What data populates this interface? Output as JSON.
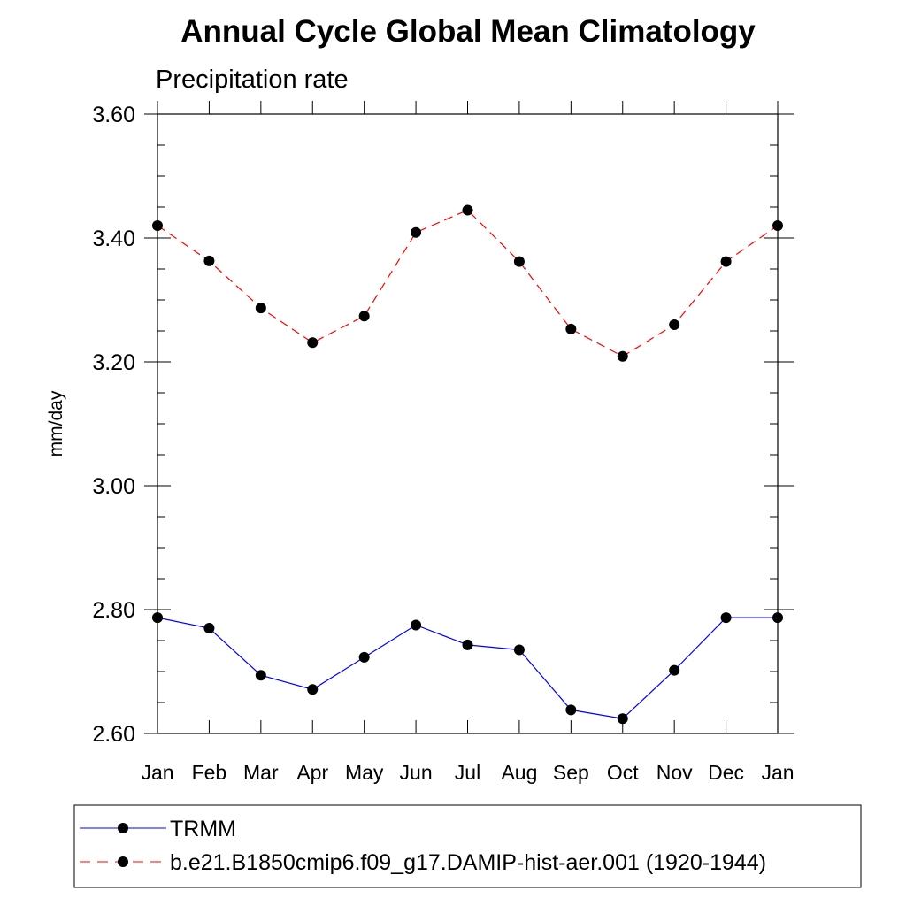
{
  "chart_data": {
    "type": "line",
    "title": "Annual Cycle Global Mean Climatology",
    "subtitle": "Precipitation rate",
    "xlabel": "",
    "ylabel": "mm/day",
    "categories": [
      "Jan",
      "Feb",
      "Mar",
      "Apr",
      "May",
      "Jun",
      "Jul",
      "Aug",
      "Sep",
      "Oct",
      "Nov",
      "Dec",
      "Jan"
    ],
    "ylim": [
      2.6,
      3.6
    ],
    "yticks": [
      "2.60",
      "2.80",
      "3.00",
      "3.20",
      "3.40",
      "3.60"
    ],
    "grid": false,
    "legend_position": "bottom",
    "series": [
      {
        "name": "TRMM",
        "color": "#0000ff",
        "line_style": "solid",
        "marker": "filled-circle",
        "values": [
          2.787,
          2.77,
          2.694,
          2.671,
          2.723,
          2.775,
          2.743,
          2.735,
          2.638,
          2.624,
          2.702,
          2.787,
          2.787
        ]
      },
      {
        "name": "b.e21.B1850cmip6.f09_g17.DAMIP-hist-aer.001 (1920-1944)",
        "color": "#ff0000",
        "line_style": "dashed",
        "marker": "filled-circle",
        "values": [
          3.42,
          3.363,
          3.287,
          3.231,
          3.274,
          3.409,
          3.445,
          3.362,
          3.253,
          3.209,
          3.26,
          3.362,
          3.42
        ]
      }
    ]
  }
}
